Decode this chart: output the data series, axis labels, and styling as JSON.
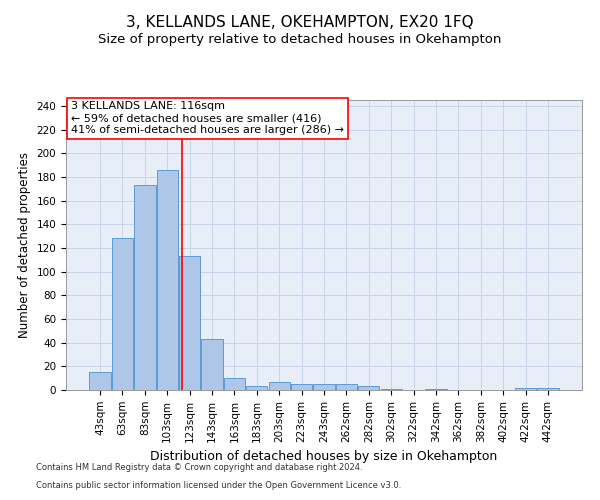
{
  "title": "3, KELLANDS LANE, OKEHAMPTON, EX20 1FQ",
  "subtitle": "Size of property relative to detached houses in Okehampton",
  "xlabel": "Distribution of detached houses by size in Okehampton",
  "ylabel": "Number of detached properties",
  "footnote1": "Contains HM Land Registry data © Crown copyright and database right 2024.",
  "footnote2": "Contains public sector information licensed under the Open Government Licence v3.0.",
  "bin_labels": [
    "43sqm",
    "63sqm",
    "83sqm",
    "103sqm",
    "123sqm",
    "143sqm",
    "163sqm",
    "183sqm",
    "203sqm",
    "223sqm",
    "243sqm",
    "262sqm",
    "282sqm",
    "302sqm",
    "322sqm",
    "342sqm",
    "362sqm",
    "382sqm",
    "402sqm",
    "422sqm",
    "442sqm"
  ],
  "bar_values": [
    15,
    128,
    173,
    186,
    113,
    43,
    10,
    3,
    7,
    5,
    5,
    5,
    3,
    1,
    0,
    1,
    0,
    0,
    0,
    2,
    2
  ],
  "bar_color": "#aec6e8",
  "bar_edge_color": "#5b9bd5",
  "annotation_box_text": "3 KELLANDS LANE: 116sqm\n← 59% of detached houses are smaller (416)\n41% of semi-detached houses are larger (286) →",
  "annotation_box_color": "white",
  "annotation_box_edge_color": "red",
  "vline_color": "red",
  "ylim": [
    0,
    245
  ],
  "yticks": [
    0,
    20,
    40,
    60,
    80,
    100,
    120,
    140,
    160,
    180,
    200,
    220,
    240
  ],
  "grid_color": "#c8d4e8",
  "bg_color": "#e8eef8",
  "title_fontsize": 11,
  "subtitle_fontsize": 9.5,
  "xlabel_fontsize": 9,
  "ylabel_fontsize": 8.5,
  "tick_fontsize": 7.5,
  "annotation_fontsize": 8,
  "footnote_fontsize": 6
}
